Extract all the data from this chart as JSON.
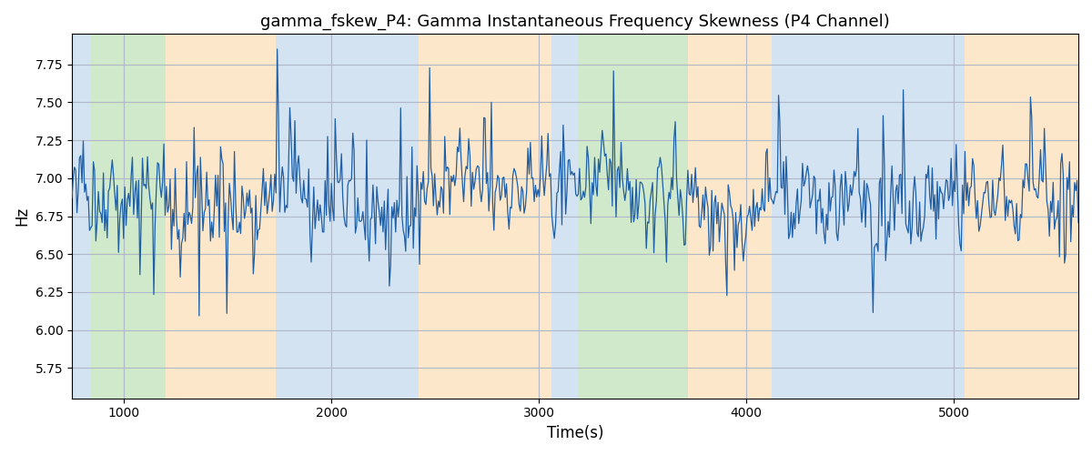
{
  "title": "gamma_fskew_P4: Gamma Instantaneous Frequency Skewness (P4 Channel)",
  "xlabel": "Time(s)",
  "ylabel": "Hz",
  "xlim": [
    750,
    5600
  ],
  "ylim": [
    5.55,
    7.95
  ],
  "yticks": [
    5.75,
    6.0,
    6.25,
    6.5,
    6.75,
    7.0,
    7.25,
    7.5,
    7.75
  ],
  "xticks": [
    1000,
    2000,
    3000,
    4000,
    5000
  ],
  "line_color": "#1f5fa6",
  "line_width": 0.9,
  "background_color": "#ffffff",
  "grid_color": "#b0b8c8",
  "bands": [
    {
      "start": 750,
      "end": 840,
      "color": "#b0cce8",
      "alpha": 0.55
    },
    {
      "start": 840,
      "end": 1200,
      "color": "#a8d8a0",
      "alpha": 0.55
    },
    {
      "start": 1200,
      "end": 1730,
      "color": "#fdd5a0",
      "alpha": 0.55
    },
    {
      "start": 1730,
      "end": 2420,
      "color": "#b0cce8",
      "alpha": 0.55
    },
    {
      "start": 2420,
      "end": 2530,
      "color": "#fdd5a0",
      "alpha": 0.55
    },
    {
      "start": 2530,
      "end": 3060,
      "color": "#fdd5a0",
      "alpha": 0.55
    },
    {
      "start": 3060,
      "end": 3190,
      "color": "#b0cce8",
      "alpha": 0.55
    },
    {
      "start": 3190,
      "end": 3720,
      "color": "#a8d8a0",
      "alpha": 0.55
    },
    {
      "start": 3720,
      "end": 3820,
      "color": "#fdd5a0",
      "alpha": 0.55
    },
    {
      "start": 3820,
      "end": 4120,
      "color": "#fdd5a0",
      "alpha": 0.55
    },
    {
      "start": 4120,
      "end": 4900,
      "color": "#b0cce8",
      "alpha": 0.55
    },
    {
      "start": 4900,
      "end": 5050,
      "color": "#b0cce8",
      "alpha": 0.55
    },
    {
      "start": 5050,
      "end": 5600,
      "color": "#fdd5a0",
      "alpha": 0.55
    }
  ],
  "seed": 42,
  "n_points": 800,
  "signal_mean": 6.875,
  "title_fontsize": 13
}
